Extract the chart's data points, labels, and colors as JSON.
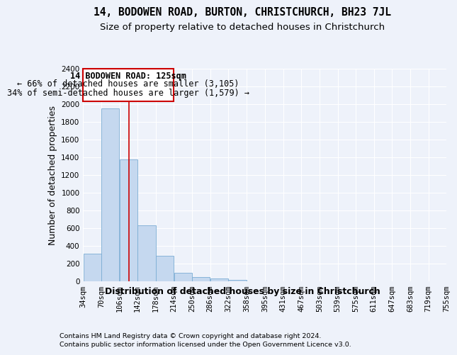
{
  "title": "14, BODOWEN ROAD, BURTON, CHRISTCHURCH, BH23 7JL",
  "subtitle": "Size of property relative to detached houses in Christchurch",
  "xlabel": "Distribution of detached houses by size in Christchurch",
  "ylabel": "Number of detached properties",
  "footer_line1": "Contains HM Land Registry data © Crown copyright and database right 2024.",
  "footer_line2": "Contains public sector information licensed under the Open Government Licence v3.0.",
  "annotation_line1": "14 BODOWEN ROAD: 125sqm",
  "annotation_line2": "← 66% of detached houses are smaller (3,105)",
  "annotation_line3": "34% of semi-detached houses are larger (1,579) →",
  "bin_edges": [
    34,
    70,
    106,
    142,
    178,
    214,
    250,
    286,
    322,
    358,
    395,
    431,
    467,
    503,
    539,
    575,
    611,
    647,
    683,
    719,
    755
  ],
  "bar_heights": [
    310,
    1950,
    1380,
    630,
    285,
    100,
    45,
    30,
    20,
    0,
    0,
    0,
    0,
    0,
    0,
    0,
    0,
    0,
    0,
    0
  ],
  "bar_color": "#c5d8ef",
  "bar_edge_color": "#7badd4",
  "vline_color": "#cc0000",
  "vline_x": 125,
  "ylim": [
    0,
    2400
  ],
  "yticks": [
    0,
    200,
    400,
    600,
    800,
    1000,
    1200,
    1400,
    1600,
    1800,
    2000,
    2200,
    2400
  ],
  "background_color": "#eef2fa",
  "grid_color": "#ffffff",
  "title_fontsize": 10.5,
  "subtitle_fontsize": 9.5,
  "axis_label_fontsize": 9,
  "tick_fontsize": 7.5,
  "annotation_fontsize": 8.5,
  "footer_fontsize": 6.8
}
